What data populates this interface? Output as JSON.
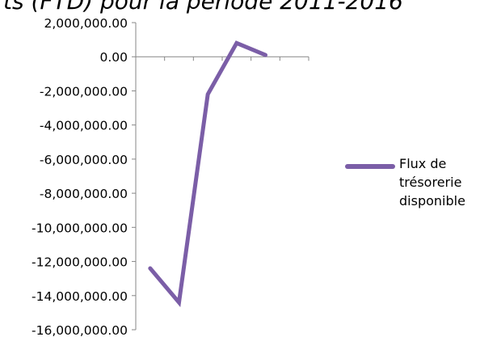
{
  "chart_data": {
    "type": "line",
    "title": "ts (FTD) pour la période 2011-2016",
    "xlabel": "",
    "ylabel": "",
    "categories": [
      "",
      "",
      "",
      "",
      "",
      ""
    ],
    "ylim": [
      -16000000,
      2000000
    ],
    "yticks": [
      2000000,
      0,
      -2000000,
      -4000000,
      -6000000,
      -8000000,
      -10000000,
      -12000000,
      -14000000,
      -16000000
    ],
    "ytick_labels": [
      "2,000,000.00",
      "0.00",
      "-2,000,000.00",
      "-4,000,000.00",
      "-6,000,000.00",
      "-8,000,000.00",
      "-10,000,000.00",
      "-12,000,000.00",
      "-14,000,000.00",
      "-16,000,000.00"
    ],
    "grid": false,
    "legend_position": "right",
    "series": [
      {
        "name": "Flux de trésorerie disponible",
        "values": [
          -12400000,
          -14400000,
          -2200000,
          800000,
          100000,
          null
        ],
        "color": "#7b5ea7"
      }
    ]
  }
}
